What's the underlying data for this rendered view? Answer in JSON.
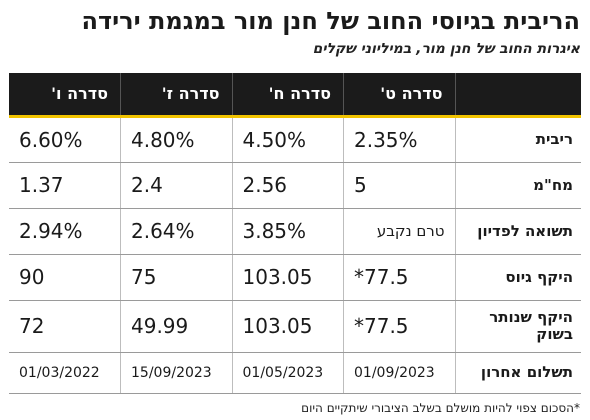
{
  "title": "הריבית בגיוסי החוב של חנן מור במגמת ירידה",
  "subtitle": "איגרות החוב של חנן מור, במיליוני שקלים",
  "table": {
    "columns": [
      "",
      "סדרה ט'",
      "סדרה ח'",
      "סדרה ז'",
      "סדרה ו'"
    ],
    "rows": [
      {
        "label": "ריבית",
        "cells": [
          "2.35%",
          "4.50%",
          "4.80%",
          "6.60%"
        ]
      },
      {
        "label": "מח\"מ",
        "cells": [
          "5",
          "2.56",
          "2.4",
          "1.37"
        ]
      },
      {
        "label": "תשואה לפדיון",
        "cells": [
          "טרם נקבע",
          "3.85%",
          "2.64%",
          "2.94%"
        ]
      },
      {
        "label": "היקף גיוס",
        "cells": [
          "*77.5",
          "103.05",
          "75",
          "90"
        ]
      },
      {
        "label": "היקף שנותר בשוק",
        "cells": [
          "*77.5",
          "103.05",
          "49.99",
          "72"
        ]
      },
      {
        "label": "תשלום אחרון",
        "cells": [
          "01/09/2023",
          "01/05/2023",
          "15/09/2023",
          "01/03/2022"
        ]
      }
    ]
  },
  "footnote": "*הסכום צפוי להיות מושלם בשלב הציבורי שיתקיים היום",
  "colors": {
    "header_bg": "#1b1b1b",
    "header_text": "#ffffff",
    "accent": "#f2c400"
  }
}
